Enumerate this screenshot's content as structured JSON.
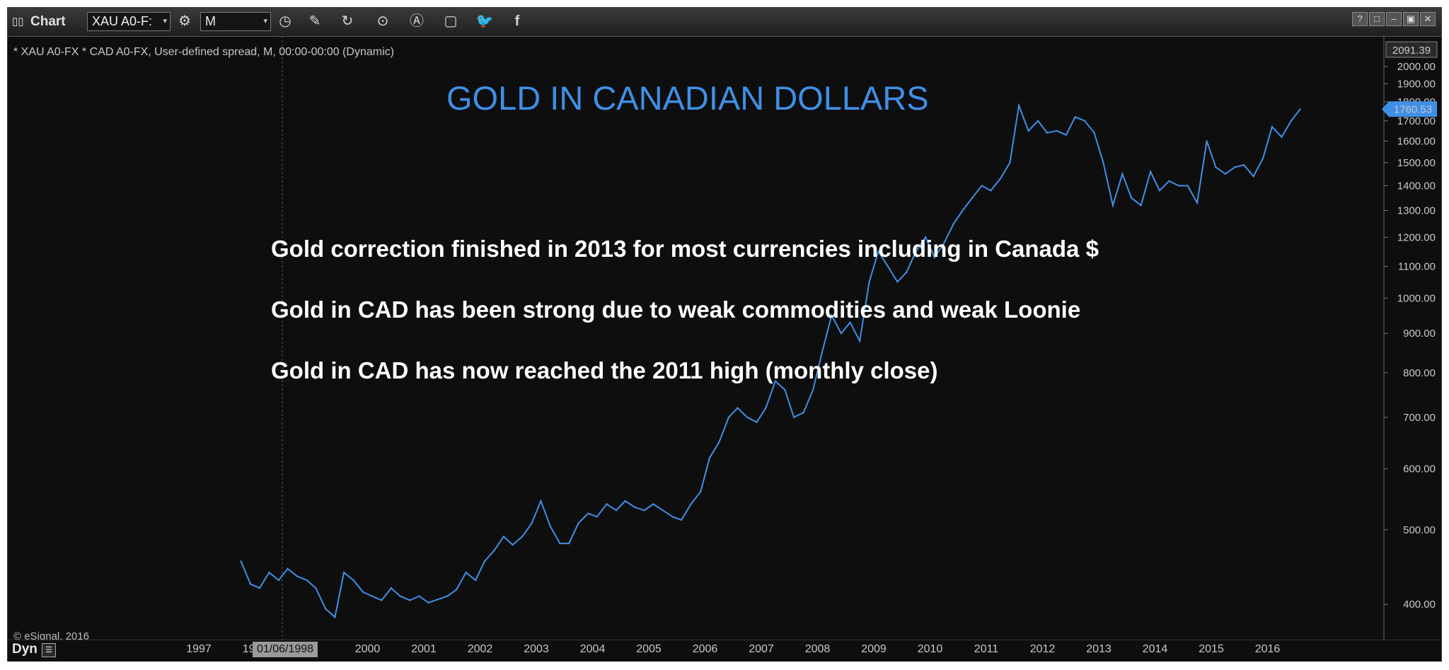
{
  "toolbar": {
    "app_title": "Chart",
    "symbol": "XAU A0-F:",
    "interval": "M"
  },
  "subtitle": "* XAU A0-FX * CAD A0-FX, User-defined spread, M, 00:00-00:00 (Dynamic)",
  "headline": "GOLD IN CANADIAN DOLLARS",
  "notes": [
    "Gold correction finished in 2013 for most currencies including in Canada $",
    "Gold in CAD has been strong due to weak commodities and weak Loonie",
    "Gold in CAD has now reached the 2011 high (monthly close)"
  ],
  "copyright": "© eSignal, 2016",
  "bottom": {
    "dyn_label": "Dyn",
    "cursor_date": "01/06/1998"
  },
  "colors": {
    "line": "#3f8fe6",
    "background": "#0e0e0e",
    "axis_text": "#c8c8c8",
    "headline": "#3f8fe6"
  },
  "chart_data": {
    "type": "line",
    "scale": "log",
    "xlabel": "",
    "ylabel": "",
    "x_ticks": [
      "1997",
      "1998",
      "99",
      "2000",
      "2001",
      "2002",
      "2003",
      "2004",
      "2005",
      "2006",
      "2007",
      "2008",
      "2009",
      "2010",
      "2011",
      "2012",
      "2013",
      "2014",
      "2015",
      "2016"
    ],
    "y_ticks": [
      "400.00",
      "500.00",
      "600.00",
      "700.00",
      "800.00",
      "900.00",
      "1000.00",
      "1100.00",
      "1200.00",
      "1300.00",
      "1400.00",
      "1500.00",
      "1600.00",
      "1700.00",
      "1800.00",
      "1900.00",
      "2000.00"
    ],
    "ylim": [
      360,
      2100
    ],
    "top_label": "2091.39",
    "last_value": "1760.53",
    "series": [
      {
        "x": [
          1997.75,
          1997.92,
          1998.08,
          1998.25,
          1998.42,
          1998.58,
          1998.75,
          1998.92,
          1999.08,
          1999.25,
          1999.42,
          1999.58,
          1999.75,
          1999.92,
          2000.08,
          2000.25,
          2000.42,
          2000.58,
          2000.75,
          2000.92,
          2001.08,
          2001.25,
          2001.42,
          2001.58,
          2001.75,
          2001.92,
          2002.08,
          2002.25,
          2002.42,
          2002.58,
          2002.75,
          2002.92,
          2003.08,
          2003.25,
          2003.42,
          2003.58,
          2003.75,
          2003.92,
          2004.08,
          2004.25,
          2004.42,
          2004.58,
          2004.75,
          2004.92,
          2005.08,
          2005.25,
          2005.42,
          2005.58,
          2005.75,
          2005.92,
          2006.08,
          2006.25,
          2006.42,
          2006.58,
          2006.75,
          2006.92,
          2007.08,
          2007.25,
          2007.42,
          2007.58,
          2007.75,
          2007.92,
          2008.08,
          2008.25,
          2008.42,
          2008.58,
          2008.75,
          2008.92,
          2009.08,
          2009.25,
          2009.42,
          2009.58,
          2009.75,
          2009.92,
          2010.08,
          2010.25,
          2010.42,
          2010.58,
          2010.75,
          2010.92,
          2011.08,
          2011.25,
          2011.42,
          2011.58,
          2011.75,
          2011.92,
          2012.08,
          2012.25,
          2012.42,
          2012.58,
          2012.75,
          2012.92,
          2013.08,
          2013.25,
          2013.42,
          2013.58,
          2013.75,
          2013.92,
          2014.08,
          2014.25,
          2014.42,
          2014.58,
          2014.75,
          2014.92,
          2015.08,
          2015.25,
          2015.42,
          2015.58,
          2015.75,
          2015.92,
          2016.08,
          2016.25,
          2016.42,
          2016.58
        ],
        "values": [
          455,
          425,
          420,
          440,
          430,
          445,
          435,
          430,
          420,
          395,
          385,
          440,
          430,
          415,
          410,
          405,
          420,
          410,
          405,
          410,
          402,
          406,
          410,
          418,
          440,
          430,
          455,
          470,
          490,
          478,
          490,
          510,
          545,
          505,
          480,
          480,
          510,
          525,
          520,
          540,
          530,
          545,
          535,
          530,
          540,
          530,
          520,
          515,
          540,
          560,
          620,
          650,
          700,
          720,
          700,
          690,
          720,
          780,
          760,
          700,
          710,
          760,
          850,
          950,
          900,
          930,
          880,
          1050,
          1150,
          1100,
          1050,
          1080,
          1150,
          1200,
          1130,
          1180,
          1250,
          1300,
          1350,
          1400,
          1380,
          1430,
          1500,
          1780,
          1650,
          1700,
          1640,
          1650,
          1630,
          1720,
          1700,
          1640,
          1500,
          1320,
          1450,
          1350,
          1320,
          1460,
          1380,
          1420,
          1400,
          1400,
          1330,
          1600,
          1480,
          1450,
          1480,
          1490,
          1440,
          1520,
          1670,
          1620,
          1700,
          1760
        ]
      }
    ]
  }
}
